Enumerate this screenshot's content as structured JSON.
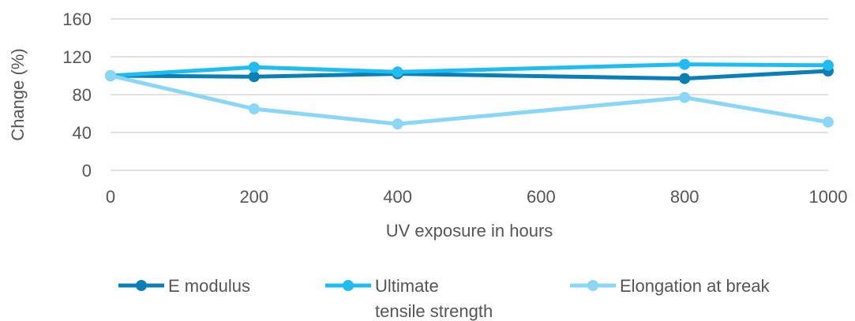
{
  "chart_data": {
    "type": "line",
    "x": [
      0,
      200,
      400,
      800,
      1000
    ],
    "xticks": [
      0,
      200,
      400,
      600,
      800,
      1000
    ],
    "yticks": [
      0,
      40,
      80,
      120,
      160
    ],
    "xlim": [
      0,
      1000
    ],
    "ylim": [
      0,
      160
    ],
    "xlabel": "UV exposure in hours",
    "ylabel": "Change (%)",
    "grid": true,
    "legend_position": "bottom",
    "series": [
      {
        "name": "E modulus",
        "name_lines": [
          "E modulus"
        ],
        "color": "#0a7fb5",
        "values": [
          100,
          99,
          102,
          97,
          105
        ]
      },
      {
        "name": "Ultimate tensile strength",
        "name_lines": [
          "Ultimate",
          "tensile strength"
        ],
        "color": "#1ebcf0",
        "values": [
          100,
          109,
          104,
          112,
          111
        ]
      },
      {
        "name": "Elongation at break",
        "name_lines": [
          "Elongation at break"
        ],
        "color": "#8ad7f5",
        "values": [
          100,
          65,
          49,
          77,
          51
        ]
      }
    ]
  }
}
